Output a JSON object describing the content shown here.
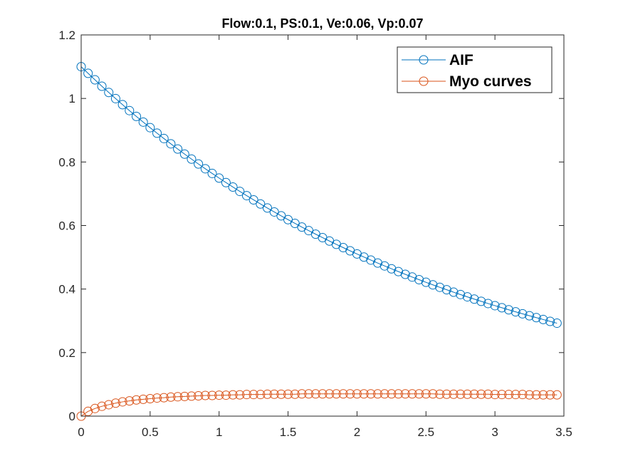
{
  "chart_data": {
    "type": "line",
    "title": "Flow:0.1, PS:0.1, Ve:0.06, Vp:0.07",
    "xlabel": "",
    "ylabel": "",
    "xlim": [
      0,
      3.5
    ],
    "ylim": [
      0,
      1.2
    ],
    "x_ticks": [
      "0",
      "0.5",
      "1",
      "1.5",
      "2",
      "2.5",
      "3",
      "3.5"
    ],
    "y_ticks": [
      "0",
      "0.2",
      "0.4",
      "0.6",
      "0.8",
      "1",
      "1.2"
    ],
    "grid": false,
    "legend_position": "top-right",
    "marker": "circle",
    "x": [
      0,
      0.05,
      0.1,
      0.15,
      0.2,
      0.25,
      0.3,
      0.35,
      0.4,
      0.45,
      0.5,
      0.55,
      0.6,
      0.65,
      0.7,
      0.75,
      0.8,
      0.85,
      0.9,
      0.95,
      1.0,
      1.05,
      1.1,
      1.15,
      1.2,
      1.25,
      1.3,
      1.35,
      1.4,
      1.45,
      1.5,
      1.55,
      1.6,
      1.65,
      1.7,
      1.75,
      1.8,
      1.85,
      1.9,
      1.95,
      2.0,
      2.05,
      2.1,
      2.15,
      2.2,
      2.25,
      2.3,
      2.35,
      2.4,
      2.45,
      2.5,
      2.55,
      2.6,
      2.65,
      2.7,
      2.75,
      2.8,
      2.85,
      2.9,
      2.95,
      3.0,
      3.05,
      3.1,
      3.15,
      3.2,
      3.25,
      3.3,
      3.35,
      3.4,
      3.45
    ],
    "series": [
      {
        "name": "AIF",
        "color": "#0072BD",
        "values": [
          1.1,
          1.0791,
          1.0586,
          1.0385,
          1.0188,
          0.9994,
          0.9804,
          0.9618,
          0.9435,
          0.9256,
          0.908,
          0.8907,
          0.8738,
          0.8572,
          0.8409,
          0.8249,
          0.8092,
          0.7938,
          0.7787,
          0.7639,
          0.7494,
          0.7352,
          0.7212,
          0.7075,
          0.694,
          0.6808,
          0.6679,
          0.6552,
          0.6427,
          0.6305,
          0.6185,
          0.6068,
          0.5952,
          0.5839,
          0.5728,
          0.5619,
          0.5512,
          0.5408,
          0.5305,
          0.5204,
          0.5105,
          0.5008,
          0.4913,
          0.4819,
          0.4728,
          0.4638,
          0.455,
          0.4463,
          0.4378,
          0.4295,
          0.4213,
          0.4133,
          0.4055,
          0.3978,
          0.3902,
          0.3828,
          0.3755,
          0.3684,
          0.3614,
          0.3545,
          0.3478,
          0.3412,
          0.3347,
          0.3283,
          0.3221,
          0.316,
          0.31,
          0.3041,
          0.2983,
          0.2926
        ]
      },
      {
        "name": "Myo curves",
        "color": "#D95319",
        "values": [
          0.0,
          0.015,
          0.024,
          0.031,
          0.036,
          0.041,
          0.045,
          0.048,
          0.051,
          0.053,
          0.055,
          0.057,
          0.058,
          0.06,
          0.061,
          0.062,
          0.063,
          0.064,
          0.065,
          0.065,
          0.066,
          0.066,
          0.067,
          0.067,
          0.068,
          0.068,
          0.068,
          0.069,
          0.069,
          0.069,
          0.069,
          0.069,
          0.07,
          0.07,
          0.07,
          0.07,
          0.07,
          0.07,
          0.07,
          0.07,
          0.07,
          0.07,
          0.07,
          0.07,
          0.07,
          0.07,
          0.07,
          0.07,
          0.07,
          0.07,
          0.07,
          0.07,
          0.069,
          0.069,
          0.069,
          0.069,
          0.069,
          0.069,
          0.069,
          0.069,
          0.068,
          0.068,
          0.068,
          0.068,
          0.068,
          0.067,
          0.067,
          0.067,
          0.067,
          0.067
        ]
      }
    ]
  }
}
